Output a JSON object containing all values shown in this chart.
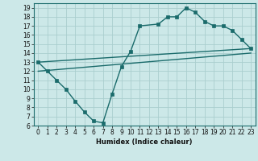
{
  "xlabel": "Humidex (Indice chaleur)",
  "xlim": [
    -0.5,
    23.5
  ],
  "ylim": [
    6,
    19.5
  ],
  "xticks": [
    0,
    1,
    2,
    3,
    4,
    5,
    6,
    7,
    8,
    9,
    10,
    11,
    12,
    13,
    14,
    15,
    16,
    17,
    18,
    19,
    20,
    21,
    22,
    23
  ],
  "yticks": [
    6,
    7,
    8,
    9,
    10,
    11,
    12,
    13,
    14,
    15,
    16,
    17,
    18,
    19
  ],
  "bg_color": "#cce8e8",
  "line_color": "#1a6b6b",
  "grid_color": "#aacece",
  "line1_x": [
    0,
    1,
    2,
    3,
    4,
    5,
    6,
    7,
    8,
    9,
    10,
    11,
    13,
    14,
    15,
    16,
    17,
    18,
    19,
    20,
    21,
    22,
    23
  ],
  "line1_y": [
    13,
    12,
    11,
    10,
    8.7,
    7.5,
    6.5,
    6.3,
    9.5,
    12.5,
    14.2,
    17.0,
    17.2,
    18.0,
    18.0,
    19.0,
    18.5,
    17.5,
    17.0,
    17.0,
    16.5,
    15.5,
    14.5
  ],
  "line2_x": [
    0,
    23
  ],
  "line2_y": [
    13.0,
    14.5
  ],
  "line3_x": [
    0,
    23
  ],
  "line3_y": [
    12.0,
    14.0
  ],
  "tick_fontsize": 5.5,
  "xlabel_fontsize": 6.0,
  "marker_size": 2.5,
  "linewidth": 1.0
}
